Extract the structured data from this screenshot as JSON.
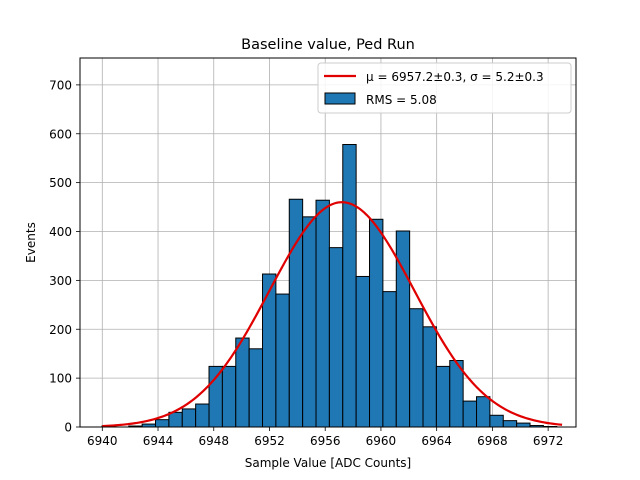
{
  "chart_data": {
    "type": "bar",
    "title": "Baseline value, Ped Run",
    "xlabel": "Sample Value [ADC Counts]",
    "ylabel": "Events",
    "xlim": [
      6938.4,
      6974.0
    ],
    "ylim": [
      0,
      755
    ],
    "grid": true,
    "legend_position": "top-right",
    "x_ticks": [
      6940,
      6944,
      6948,
      6952,
      6956,
      6960,
      6964,
      6968,
      6972
    ],
    "y_ticks": [
      0,
      100,
      200,
      300,
      400,
      500,
      600,
      700
    ],
    "bin_width": 0.96,
    "bin_start": 6939.98,
    "histogram": {
      "name": "RMS = 5.08",
      "color": "#1f77b4",
      "edge_color": "#000000",
      "counts": [
        2,
        0,
        2,
        6,
        15,
        30,
        37,
        47,
        124,
        124,
        182,
        160,
        313,
        272,
        466,
        430,
        464,
        367,
        578,
        308,
        425,
        277,
        401,
        242,
        205,
        124,
        136,
        53,
        62,
        24,
        13,
        8,
        3,
        1
      ]
    },
    "fit": {
      "name_prefix": "μ = 6957.2±0.3, σ = 5.2±0.3",
      "mu": 6957.2,
      "sigma": 5.2,
      "amplitude": 460,
      "x_range": [
        6940,
        6973
      ],
      "color": "#e00000"
    },
    "legend": {
      "fit_label": "μ = 6957.2±0.3, σ = 5.2±0.3",
      "hist_label": "RMS = 5.08"
    }
  }
}
